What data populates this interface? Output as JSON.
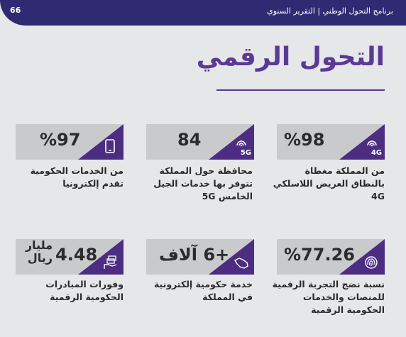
{
  "header": {
    "title": "برنامج التحول الوطني | التقرير السنوي",
    "page_number": "66"
  },
  "page_title": "التحول الرقمي",
  "stats": [
    {
      "value": "%98",
      "badge": "4G",
      "icon": "signal-icon",
      "description": "من المملكة مغطاة بالنطاق العريض اللاسلكي 4G"
    },
    {
      "value": "84",
      "badge": "5G",
      "icon": "signal-icon",
      "description": "محافظة حول المملكة تتوفر بها خدمات الجيل الخامس 5G"
    },
    {
      "value": "%97",
      "badge": "",
      "icon": "tablet-icon",
      "description": "من الخدمات الحكومية تقدم إلكترونيا"
    },
    {
      "value": "%77.26",
      "badge": "",
      "icon": "fingerprint-icon",
      "description": "نسبة نضج التجربة الرقمية للمنصات والخدمات الحكومية الرقمية"
    },
    {
      "value": "+6 آلاف",
      "badge": "",
      "icon": "saudi-map-icon",
      "description": "خدمة حكومية إلكترونية في المملكة"
    },
    {
      "value": "4.48",
      "unit": "مليار ريال",
      "badge": "",
      "icon": "money-hand-icon",
      "description": "وفورات المبادرات الحكومية الرقمية"
    }
  ],
  "colors": {
    "topbar": "#2f2a72",
    "accent": "#5a3a94",
    "triangle": "#4c2d82",
    "card": "#c9cacc",
    "background": "#e6e7e9"
  }
}
